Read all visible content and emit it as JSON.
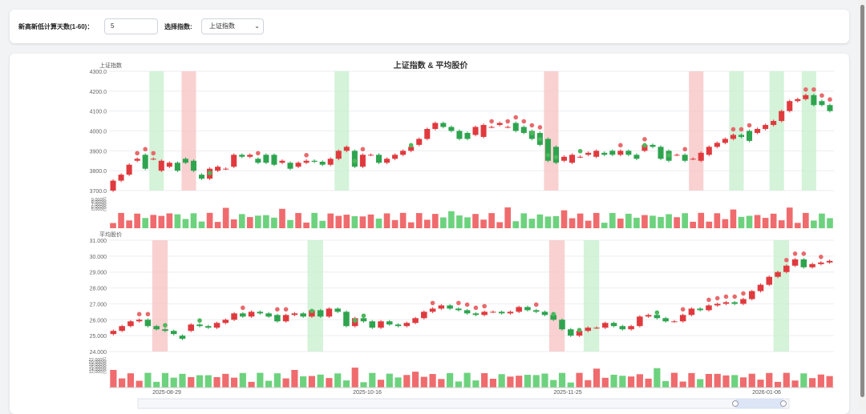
{
  "controls": {
    "days_label": "新高新低计算天数(1-60)：",
    "days_value": "5",
    "index_label": "选择指数:",
    "index_selected": "上证指数"
  },
  "chart": {
    "title": "上证指数 & 平均股价",
    "x_labels": [
      "2025-08-29",
      "2025-10-16",
      "2025-11-25",
      "2026-01-06"
    ],
    "colors": {
      "up": "#e03a3e",
      "down": "#2ea44f",
      "up_band": "#f7c6c6",
      "down_band": "#c9f0cf",
      "vol_up": "#ef6b6d",
      "vol_down": "#6dd27e"
    }
  },
  "chart_data": [
    {
      "type": "candlestick",
      "title": "上证指数",
      "y_ticks": [
        "4300.0",
        "4200.0",
        "4100.0",
        "4000.0",
        "3900.0",
        "3800.0",
        "3700.0"
      ],
      "ylim": [
        3700,
        4300
      ],
      "open": [
        3700,
        3750,
        3780,
        3850,
        3880,
        3860,
        3800,
        3820,
        3840,
        3860,
        3850,
        3780,
        3760,
        3800,
        3810,
        3820,
        3880,
        3870,
        3860,
        3880,
        3880,
        3840,
        3840,
        3820,
        3840,
        3850,
        3845,
        3830,
        3860,
        3900,
        3900,
        3820,
        3880,
        3880,
        3840,
        3860,
        3880,
        3900,
        3930,
        3960,
        4010,
        4040,
        4020,
        4000,
        3990,
        3980,
        3970,
        4020,
        4030,
        4020,
        4040,
        4020,
        4000,
        3990,
        3960,
        3920,
        3850,
        3840,
        3870,
        3880,
        3870,
        3890,
        3900,
        3880,
        3900,
        3880,
        3900,
        3930,
        3920,
        3900,
        3880,
        3880,
        3860,
        3850,
        3880,
        3920,
        3940,
        3960,
        3980,
        4000,
        3990,
        4010,
        4030,
        4050,
        4100,
        4150,
        4160,
        4180,
        4150,
        4130
      ],
      "close": [
        3750,
        3780,
        3830,
        3860,
        3810,
        3860,
        3850,
        3840,
        3800,
        3840,
        3800,
        3760,
        3810,
        3820,
        3810,
        3880,
        3870,
        3880,
        3840,
        3840,
        3830,
        3850,
        3810,
        3840,
        3850,
        3845,
        3830,
        3860,
        3900,
        3920,
        3820,
        3880,
        3880,
        3840,
        3860,
        3880,
        3900,
        3920,
        3960,
        4010,
        4040,
        4020,
        4000,
        3960,
        3960,
        4020,
        4030,
        4020,
        4040,
        4020,
        4000,
        3990,
        3960,
        3930,
        3850,
        3840,
        3870,
        3880,
        3870,
        3890,
        3900,
        3880,
        3880,
        3900,
        3880,
        3860,
        3930,
        3920,
        3860,
        3850,
        3880,
        3850,
        3860,
        3890,
        3920,
        3940,
        3960,
        3980,
        3970,
        3950,
        4010,
        4030,
        4050,
        4100,
        4150,
        4160,
        4180,
        4130,
        4130,
        4100
      ],
      "new_high_markers": [
        3,
        4,
        5,
        18,
        24,
        31,
        47,
        49,
        50,
        51,
        52,
        53,
        63,
        66,
        71,
        77,
        78,
        79,
        86,
        87,
        88,
        89,
        90
      ],
      "new_low_markers": [
        12,
        30,
        37,
        52,
        53,
        54,
        55,
        58,
        66,
        69
      ],
      "up_bands": [
        [
          9,
          10
        ],
        [
          54,
          55
        ],
        [
          72,
          73
        ]
      ],
      "down_bands": [
        [
          5,
          6
        ],
        [
          28,
          29
        ],
        [
          77,
          78
        ],
        [
          82,
          83
        ],
        [
          86,
          87
        ]
      ],
      "volume_ticks": [
        "9,000亿",
        "8,000亿",
        "7,000亿",
        "6,000亿",
        "5,000亿"
      ]
    },
    {
      "type": "candlestick",
      "title": "平均股价",
      "y_ticks": [
        "31.000",
        "30.000",
        "29.000",
        "28.000",
        "27.000",
        "26.000",
        "25.000",
        "24.000"
      ],
      "ylim": [
        24,
        31
      ],
      "open": [
        25.1,
        25.3,
        25.6,
        25.9,
        26.0,
        25.6,
        25.4,
        25.3,
        25.0,
        25.3,
        25.7,
        25.6,
        25.5,
        25.8,
        26.0,
        26.4,
        26.2,
        26.5,
        26.4,
        26.3,
        25.9,
        26.3,
        26.4,
        26.2,
        26.6,
        26.2,
        26.7,
        26.5,
        25.6,
        26.1,
        25.9,
        25.5,
        25.9,
        25.7,
        25.6,
        25.8,
        26.1,
        26.5,
        26.7,
        26.9,
        26.7,
        26.6,
        26.4,
        26.3,
        26.5,
        26.5,
        26.4,
        26.5,
        26.8,
        26.6,
        26.5,
        26.3,
        26.0,
        25.4,
        25.0,
        25.3,
        25.5,
        25.5,
        25.8,
        25.6,
        25.4,
        25.6,
        26.2,
        26.3,
        26.1,
        25.9,
        25.9,
        26.3,
        26.7,
        26.6,
        26.9,
        27.0,
        27.1,
        27.0,
        27.3,
        27.8,
        28.2,
        28.7,
        29.0,
        29.4,
        29.8,
        29.3,
        29.5,
        29.6
      ],
      "close": [
        25.3,
        25.6,
        25.9,
        26.0,
        25.6,
        25.4,
        25.3,
        25.1,
        24.8,
        25.7,
        25.6,
        25.5,
        25.8,
        26.0,
        26.4,
        26.2,
        26.5,
        26.4,
        26.2,
        25.9,
        26.3,
        26.4,
        26.2,
        26.6,
        26.2,
        26.7,
        26.5,
        25.6,
        26.1,
        25.9,
        25.5,
        25.9,
        25.7,
        25.6,
        25.8,
        26.1,
        26.5,
        26.7,
        26.9,
        26.7,
        26.6,
        26.4,
        26.3,
        26.5,
        26.5,
        26.4,
        26.5,
        26.8,
        26.6,
        26.5,
        26.3,
        26.0,
        25.4,
        25.0,
        25.3,
        25.5,
        25.5,
        25.8,
        25.6,
        25.4,
        25.6,
        26.2,
        26.3,
        26.1,
        25.9,
        25.9,
        26.3,
        26.7,
        26.6,
        26.9,
        27.0,
        27.1,
        27.0,
        27.3,
        27.8,
        28.2,
        28.7,
        29.0,
        29.4,
        29.8,
        29.3,
        29.5,
        29.6,
        29.7
      ],
      "new_high_markers": [
        3,
        4,
        15,
        19,
        20,
        37,
        40,
        41,
        42,
        43,
        49,
        66,
        69,
        70,
        71,
        72,
        73,
        78,
        79,
        80,
        82
      ],
      "new_low_markers": [
        6,
        10,
        23,
        28,
        29,
        51,
        54,
        63
      ],
      "up_bands": [
        [
          5,
          6
        ],
        [
          51,
          52
        ]
      ],
      "down_bands": [
        [
          23,
          24
        ],
        [
          55,
          56
        ],
        [
          77,
          78
        ]
      ],
      "volume_ticks": [
        "22,000亿",
        "20,000亿",
        "18,000亿",
        "16,000亿",
        "14,000亿",
        "12,000亿"
      ]
    }
  ]
}
